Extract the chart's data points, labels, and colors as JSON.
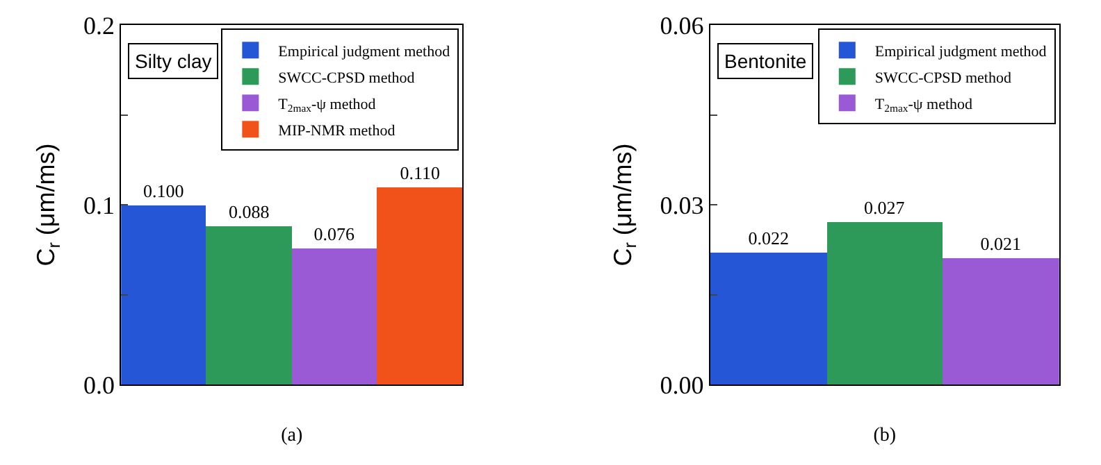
{
  "chart_data": [
    {
      "type": "bar",
      "title": "Silty clay",
      "xlabel": "(a)",
      "ylabel": "C$_{r}$ (μm/ms)",
      "categories": [
        null,
        null,
        null,
        null
      ],
      "series": [
        {
          "name": "Empirical judgment method",
          "color": "#2456d6",
          "values": [
            0.1,
            null,
            null,
            null
          ],
          "value_labels": [
            "0.100",
            null,
            null,
            null
          ]
        },
        {
          "name": "SWCC-CPSD method",
          "color": "#2e9a5a",
          "values": [
            null,
            0.088,
            null,
            null
          ],
          "value_labels": [
            null,
            "0.088",
            null,
            null
          ]
        },
        {
          "name": "T$_{2max}$-ψ method",
          "color": "#9a5ad6",
          "values": [
            null,
            null,
            0.076,
            null
          ],
          "value_labels": [
            null,
            null,
            "0.076",
            null
          ]
        },
        {
          "name": "MIP-NMR method",
          "color": "#f0521a",
          "values": [
            null,
            null,
            null,
            0.11
          ],
          "value_labels": [
            null,
            null,
            null,
            "0.110"
          ]
        }
      ],
      "ylim": [
        0,
        0.2
      ],
      "yticks": [
        {
          "value": 0,
          "label": "0.0"
        },
        {
          "value": 0.05,
          "label": null
        },
        {
          "value": 0.1,
          "label": "0.1"
        },
        {
          "value": 0.15,
          "label": null
        },
        {
          "value": 0.2,
          "label": "0.2"
        }
      ],
      "legend": "top right",
      "tick_labels": "y"
    },
    {
      "type": "bar",
      "title": "Bentonite",
      "xlabel": "(b)",
      "ylabel": "C$_{r}$ (μm/ms)",
      "categories": [
        null,
        null,
        null
      ],
      "series": [
        {
          "name": "Empirical judgment method",
          "color": "#2456d6",
          "values": [
            0.022,
            null,
            null
          ],
          "value_labels": [
            "0.022",
            null,
            null
          ]
        },
        {
          "name": "SWCC-CPSD method",
          "color": "#2e9a5a",
          "values": [
            null,
            0.027,
            null
          ],
          "value_labels": [
            null,
            "0.027",
            null
          ]
        },
        {
          "name": "T$_{2max}$-ψ method",
          "color": "#9a5ad6",
          "values": [
            null,
            null,
            0.021
          ],
          "value_labels": [
            null,
            null,
            "0.021"
          ]
        }
      ],
      "ylim": [
        0,
        0.06
      ],
      "yticks": [
        {
          "value": 0,
          "label": "0.00"
        },
        {
          "value": 0.015,
          "label": null
        },
        {
          "value": 0.03,
          "label": "0.03"
        },
        {
          "value": 0.045,
          "label": null
        },
        {
          "value": 0.06,
          "label": "0.06"
        }
      ],
      "legend": "top right",
      "tick_labels": "y"
    }
  ]
}
